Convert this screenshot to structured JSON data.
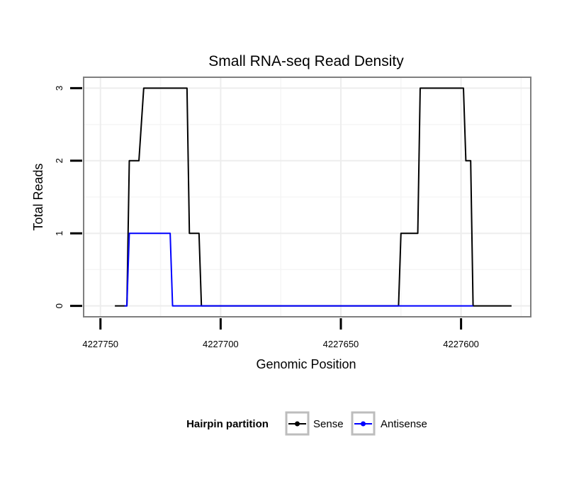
{
  "chart_data": {
    "type": "line",
    "title": "Small RNA-seq Read Density",
    "xlabel": "Genomic Position",
    "ylabel": "Total Reads",
    "x_reversed": true,
    "xlim": [
      4227757,
      4227571
    ],
    "ylim": [
      -0.15,
      3.15
    ],
    "x_ticks": [
      4227750,
      4227700,
      4227650,
      4227600
    ],
    "x_tick_labels": [
      "4227750",
      "4227700",
      "4227650",
      "4227600"
    ],
    "y_ticks": [
      0,
      1,
      2,
      3
    ],
    "y_tick_labels": [
      "0",
      "1",
      "2",
      "3"
    ],
    "grid": true,
    "legend": {
      "title": "Hairpin partition",
      "position": "bottom",
      "entries": [
        "Sense",
        "Antisense"
      ]
    },
    "series": [
      {
        "name": "Sense",
        "color": "#000000",
        "points": [
          [
            4227744,
            0
          ],
          [
            4227739,
            0
          ],
          [
            4227738,
            2
          ],
          [
            4227734,
            2
          ],
          [
            4227732,
            3
          ],
          [
            4227714,
            3
          ],
          [
            4227713,
            1
          ],
          [
            4227709,
            1
          ],
          [
            4227708,
            0
          ],
          [
            4227626,
            0
          ],
          [
            4227625,
            1
          ],
          [
            4227618,
            1
          ],
          [
            4227617,
            3
          ],
          [
            4227599,
            3
          ],
          [
            4227598,
            2
          ],
          [
            4227596,
            2
          ],
          [
            4227595,
            0
          ],
          [
            4227579,
            0
          ]
        ]
      },
      {
        "name": "Antisense",
        "color": "#0000ff",
        "points": [
          [
            4227740,
            0
          ],
          [
            4227739,
            0
          ],
          [
            4227738,
            1
          ],
          [
            4227721,
            1
          ],
          [
            4227720,
            0
          ],
          [
            4227708,
            0
          ],
          [
            4227626,
            0
          ],
          [
            4227625,
            0
          ],
          [
            4227595,
            0
          ]
        ]
      }
    ]
  }
}
